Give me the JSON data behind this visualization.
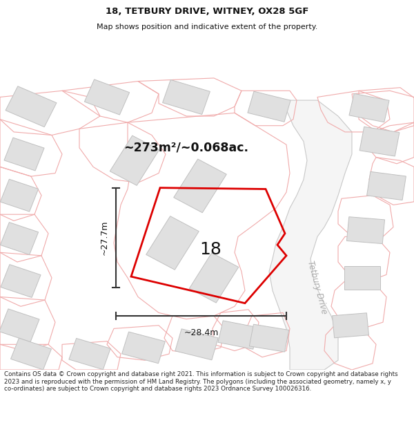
{
  "title_line1": "18, TETBURY DRIVE, WITNEY, OX28 5GF",
  "title_line2": "Map shows position and indicative extent of the property.",
  "area_text": "~273m²/~0.068ac.",
  "dim_width": "~28.4m",
  "dim_height": "~27.7m",
  "label_number": "18",
  "road_label": "Tetbury Drive",
  "copyright_text": "Contains OS data © Crown copyright and database right 2021. This information is subject to Crown copyright and database rights 2023 and is reproduced with the permission of HM Land Registry. The polygons (including the associated geometry, namely x, y co-ordinates) are subject to Crown copyright and database rights 2023 Ordnance Survey 100026316.",
  "map_bg": "#ffffff",
  "building_fill": "#e0e0e0",
  "building_edge": "#c0c0c0",
  "road_fill": "#f0f0f0",
  "boundary_color": "#f0aaaa",
  "road_outline": "#c8c8c8",
  "subject_color": "#dd0000",
  "dim_color": "#333333",
  "text_color": "#111111",
  "road_text_color": "#aaaaaa"
}
